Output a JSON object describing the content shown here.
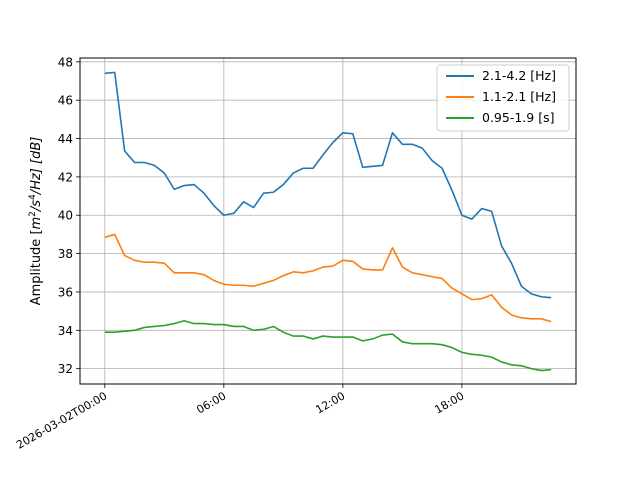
{
  "chart_data": {
    "type": "line",
    "title": "",
    "xlabel": "",
    "ylabel": "Amplitude [m²/s⁴/Hz] [dB]",
    "ylabel_parts": {
      "prefix": "Amplitude [",
      "m": "m",
      "sup1": "2",
      "mid": "/s",
      "sup2": "4",
      "suffix": "/Hz] [dB]"
    },
    "xlim_hours": [
      -1.25,
      23.75
    ],
    "ylim": [
      31.2,
      48.2
    ],
    "grid": true,
    "legend_position": "top-right",
    "x_hours": [
      0,
      0.5,
      1,
      1.5,
      2,
      2.5,
      3,
      3.5,
      4,
      4.5,
      5,
      5.5,
      6,
      6.5,
      7,
      7.5,
      8,
      8.5,
      9,
      9.5,
      10,
      10.5,
      11,
      11.5,
      12,
      12.5,
      13,
      13.5,
      14,
      14.5,
      15,
      15.5,
      16,
      16.5,
      17,
      17.5,
      18,
      18.5,
      19,
      19.5,
      20,
      20.5,
      21,
      21.5,
      22,
      22.5
    ],
    "x_ticks": [
      {
        "hours": 0,
        "label": "2026-03-02T00:00"
      },
      {
        "hours": 6,
        "label": "06:00"
      },
      {
        "hours": 12,
        "label": "12:00"
      },
      {
        "hours": 18,
        "label": "18:00"
      }
    ],
    "y_ticks": [
      32,
      34,
      36,
      38,
      40,
      42,
      44,
      46,
      48
    ],
    "series": [
      {
        "name": "2.1-4.2 [Hz]",
        "color": "#1f77b4",
        "values": [
          47.4,
          47.45,
          43.35,
          42.75,
          42.75,
          42.6,
          42.2,
          41.35,
          41.55,
          41.6,
          41.15,
          40.5,
          40.0,
          40.1,
          40.7,
          40.4,
          41.15,
          41.2,
          41.6,
          42.2,
          42.45,
          42.45,
          43.15,
          43.8,
          44.3,
          44.25,
          42.5,
          42.55,
          42.6,
          44.3,
          43.7,
          43.7,
          43.5,
          42.85,
          42.45,
          41.3,
          40.0,
          39.8,
          40.35,
          40.2,
          38.4,
          37.5,
          36.3,
          35.9,
          35.75,
          35.7
        ]
      },
      {
        "name": "1.1-2.1 [Hz]",
        "color": "#ff7f0e",
        "values": [
          38.85,
          39.0,
          37.9,
          37.65,
          37.55,
          37.55,
          37.5,
          37.0,
          37.0,
          37.0,
          36.9,
          36.6,
          36.4,
          36.35,
          36.35,
          36.3,
          36.45,
          36.6,
          36.85,
          37.05,
          37.0,
          37.1,
          37.3,
          37.35,
          37.65,
          37.6,
          37.2,
          37.15,
          37.15,
          38.3,
          37.3,
          37.0,
          36.9,
          36.8,
          36.7,
          36.2,
          35.9,
          35.6,
          35.65,
          35.85,
          35.2,
          34.8,
          34.65,
          34.6,
          34.6,
          34.45
        ]
      },
      {
        "name": "0.95-1.9 [s]",
        "color": "#2ca02c",
        "values": [
          33.9,
          33.9,
          33.95,
          34.0,
          34.15,
          34.2,
          34.25,
          34.35,
          34.5,
          34.35,
          34.35,
          34.3,
          34.3,
          34.2,
          34.2,
          34.0,
          34.05,
          34.2,
          33.9,
          33.7,
          33.7,
          33.55,
          33.7,
          33.65,
          33.65,
          33.65,
          33.45,
          33.55,
          33.75,
          33.8,
          33.4,
          33.3,
          33.3,
          33.3,
          33.25,
          33.1,
          32.85,
          32.75,
          32.7,
          32.6,
          32.35,
          32.2,
          32.15,
          32.0,
          31.9,
          31.95
        ]
      }
    ]
  }
}
